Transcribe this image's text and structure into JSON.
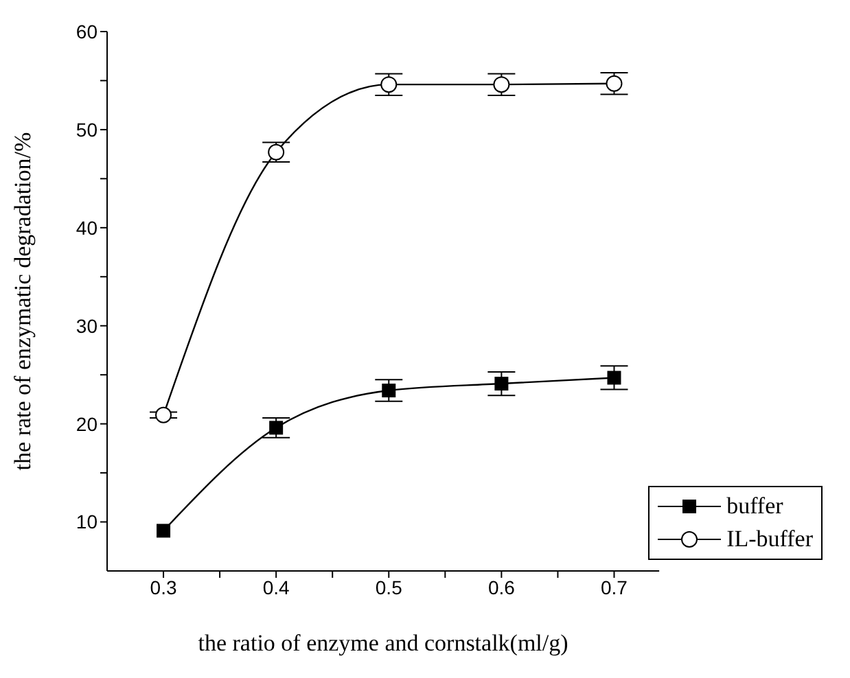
{
  "chart_data": {
    "type": "line",
    "xlabel": "the ratio of enzyme and cornstalk(ml/g)",
    "ylabel": "the rate of enzymatic degradation/%",
    "x": [
      0.3,
      0.4,
      0.5,
      0.6,
      0.7
    ],
    "series": [
      {
        "name": "buffer",
        "color": "#000000",
        "marker": "square",
        "values": [
          9.1,
          19.6,
          23.4,
          24.1,
          24.7
        ],
        "errors": [
          null,
          1.0,
          1.1,
          1.2,
          1.2
        ]
      },
      {
        "name": "IL-buffer",
        "color": "#000000",
        "marker": "circle",
        "values": [
          20.9,
          47.7,
          54.6,
          54.6,
          54.7
        ],
        "errors": [
          0.3,
          1.0,
          1.1,
          1.1,
          1.1
        ]
      }
    ],
    "xlim": [
      0.25,
      0.74
    ],
    "xticks": [
      0.3,
      {
        "value": 0.35,
        "label": null
      },
      0.4,
      {
        "value": 0.45,
        "label": null
      },
      0.5,
      {
        "value": 0.55,
        "label": null
      },
      0.6,
      {
        "value": 0.65,
        "label": null
      },
      0.7
    ],
    "ylim": [
      5,
      60
    ],
    "yticks": [
      10,
      {
        "value": 15,
        "label": null
      },
      20,
      {
        "value": 25,
        "label": null
      },
      30,
      {
        "value": 35,
        "label": null
      },
      40,
      {
        "value": 45,
        "label": null
      },
      50,
      {
        "value": 55,
        "label": null
      },
      60
    ],
    "grid": false,
    "legend": "bottom right",
    "line_style": "solid"
  }
}
